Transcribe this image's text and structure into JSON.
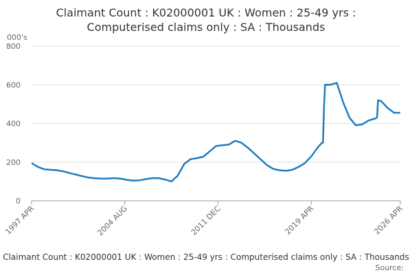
{
  "chart_data": {
    "type": "line",
    "title": [
      "Claimant Count : K02000001 UK : Women : 25-49 yrs :",
      "Computerised claims only : SA : Thousands"
    ],
    "y_label": "000's",
    "footer": "Claimant Count : K02000001 UK : Women : 25-49 yrs : Computerised claims only : SA : Thousands",
    "source": "Source:",
    "x": [
      "1997-04",
      "1997-10",
      "1998-04",
      "1998-10",
      "1999-04",
      "1999-10",
      "2000-04",
      "2000-10",
      "2001-04",
      "2001-10",
      "2002-04",
      "2002-10",
      "2003-04",
      "2003-10",
      "2004-04",
      "2004-10",
      "2005-04",
      "2005-10",
      "2006-04",
      "2006-10",
      "2007-04",
      "2007-10",
      "2008-04",
      "2008-10",
      "2009-04",
      "2009-10",
      "2010-04",
      "2010-10",
      "2011-04",
      "2011-10",
      "2012-04",
      "2012-10",
      "2013-04",
      "2013-10",
      "2014-04",
      "2014-10",
      "2015-04",
      "2015-10",
      "2016-04",
      "2016-10",
      "2017-04",
      "2017-10",
      "2018-04",
      "2018-10",
      "2019-04",
      "2019-10",
      "2020-02",
      "2020-03",
      "2020-04",
      "2020-05",
      "2020-10",
      "2021-04",
      "2021-10",
      "2022-04",
      "2022-10",
      "2023-04",
      "2023-10",
      "2024-04",
      "2024-06",
      "2024-07",
      "2024-10",
      "2025-04",
      "2025-10",
      "2026-04"
    ],
    "series": [
      {
        "name": "Claimant Count",
        "color": "#1f7bbf",
        "values": [
          195,
          175,
          163,
          160,
          158,
          152,
          143,
          135,
          127,
          120,
          116,
          115,
          115,
          117,
          114,
          108,
          104,
          106,
          112,
          117,
          117,
          110,
          100,
          130,
          190,
          215,
          220,
          228,
          255,
          283,
          287,
          290,
          310,
          300,
          275,
          245,
          215,
          185,
          165,
          158,
          155,
          160,
          175,
          195,
          230,
          275,
          300,
          300,
          490,
          600,
          600,
          610,
          510,
          430,
          390,
          395,
          415,
          425,
          430,
          520,
          515,
          480,
          455,
          455
        ]
      }
    ],
    "xlim": [
      "1997-04",
      "2026-04"
    ],
    "xticks": [
      {
        "value": "1997-04",
        "label": "1997 APR"
      },
      {
        "value": "2004-08",
        "label": "2004 AUG"
      },
      {
        "value": "2011-12",
        "label": "2011 DEC"
      },
      {
        "value": "2019-04",
        "label": "2019 APR"
      },
      {
        "value": "2026-04",
        "label": "2026 APR"
      }
    ],
    "ylim": [
      0,
      800
    ],
    "yticks": [
      0,
      200,
      400,
      600,
      800
    ],
    "grid": true
  }
}
